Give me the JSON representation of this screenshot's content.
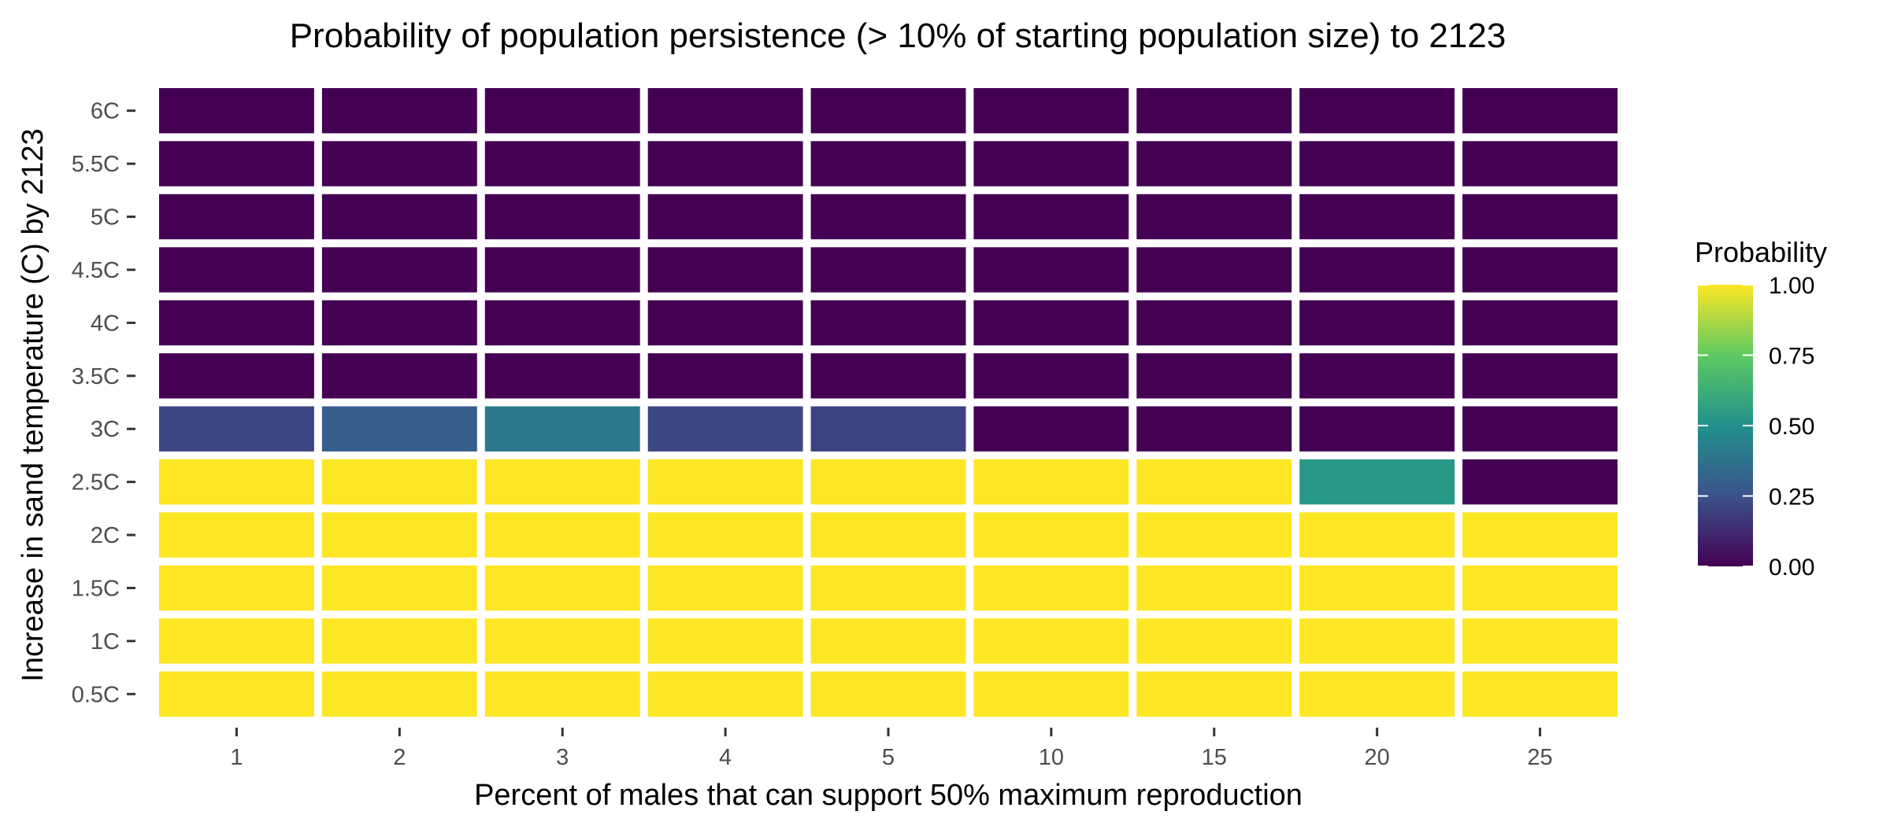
{
  "chart_data": {
    "type": "heatmap",
    "title": "Probability of population persistence (> 10% of starting population size) to 2123",
    "xlabel": "Percent of males that can support 50% maximum reproduction",
    "ylabel": "Increase in sand temperature (C) by 2123",
    "x_categories": [
      "1",
      "2",
      "3",
      "4",
      "5",
      "10",
      "15",
      "20",
      "25"
    ],
    "y_categories": [
      "0.5C",
      "1C",
      "1.5C",
      "2C",
      "2.5C",
      "3C",
      "3.5C",
      "4C",
      "4.5C",
      "5C",
      "5.5C",
      "6C"
    ],
    "values": [
      [
        1.0,
        1.0,
        1.0,
        1.0,
        1.0,
        1.0,
        1.0,
        1.0,
        1.0
      ],
      [
        1.0,
        1.0,
        1.0,
        1.0,
        1.0,
        1.0,
        1.0,
        1.0,
        1.0
      ],
      [
        1.0,
        1.0,
        1.0,
        1.0,
        1.0,
        1.0,
        1.0,
        1.0,
        1.0
      ],
      [
        1.0,
        1.0,
        1.0,
        1.0,
        1.0,
        1.0,
        1.0,
        1.0,
        1.0
      ],
      [
        1.0,
        1.0,
        1.0,
        1.0,
        1.0,
        1.0,
        1.0,
        0.53,
        0.0
      ],
      [
        0.22,
        0.3,
        0.4,
        0.22,
        0.2,
        0.0,
        0.0,
        0.0,
        0.0
      ],
      [
        0.0,
        0.0,
        0.0,
        0.0,
        0.0,
        0.0,
        0.0,
        0.0,
        0.0
      ],
      [
        0.0,
        0.0,
        0.0,
        0.0,
        0.0,
        0.0,
        0.0,
        0.0,
        0.0
      ],
      [
        0.0,
        0.0,
        0.0,
        0.0,
        0.0,
        0.0,
        0.0,
        0.0,
        0.0
      ],
      [
        0.0,
        0.0,
        0.0,
        0.0,
        0.0,
        0.0,
        0.0,
        0.0,
        0.0
      ],
      [
        0.0,
        0.0,
        0.0,
        0.0,
        0.0,
        0.0,
        0.0,
        0.0,
        0.0
      ],
      [
        0.0,
        0.0,
        0.0,
        0.0,
        0.0,
        0.0,
        0.0,
        0.0,
        0.0
      ]
    ],
    "color_scale": "viridis",
    "color_range": [
      0,
      1
    ],
    "legend": {
      "title": "Probability",
      "ticks": [
        1.0,
        0.75,
        0.5,
        0.25,
        0.0
      ],
      "tick_labels": [
        "1.00",
        "0.75",
        "0.50",
        "0.25",
        "0.00"
      ],
      "position": "right"
    },
    "grid": false
  }
}
